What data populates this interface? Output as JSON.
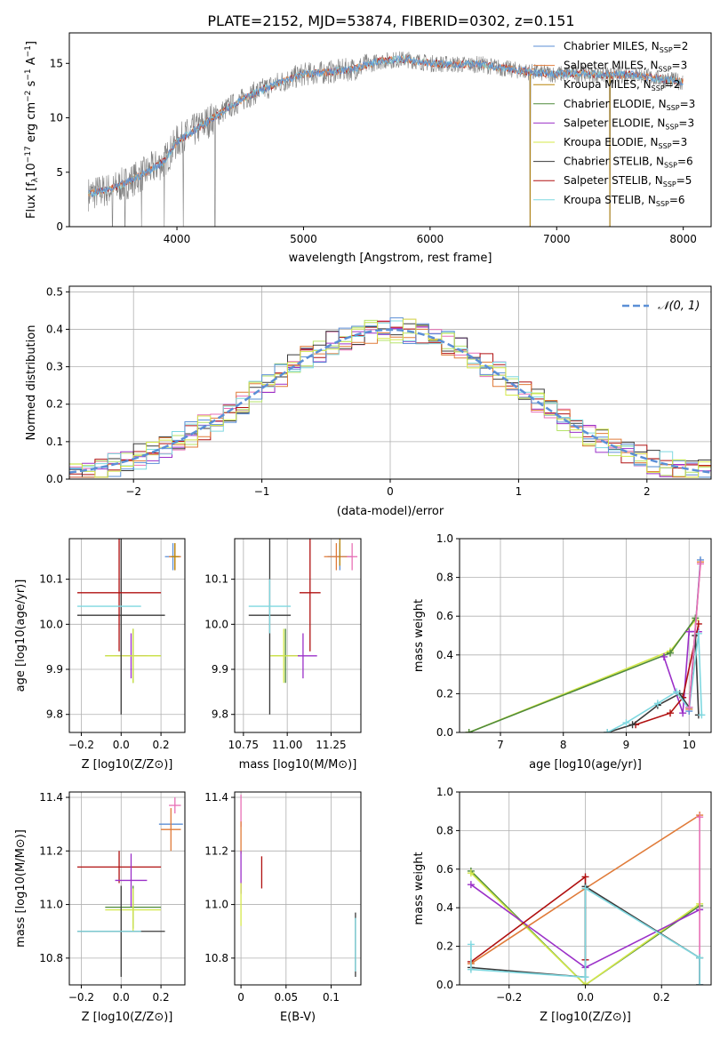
{
  "page_title": "PLATE=2152, MJD=53874, FIBERID=0302, z=0.151",
  "colors": {
    "chabrier_miles": "#5b8fd6",
    "salpeter_miles": "#e07b39",
    "kroupa_miles": "#b8860b",
    "chabrier_elodie": "#4f8a3a",
    "salpeter_elodie": "#9b30c8",
    "kroupa_elodie": "#d4e84a",
    "chabrier_stelib": "#3a3a3a",
    "salpeter_stelib": "#b01010",
    "kroupa_stelib": "#7fd8e0",
    "data": "#808080",
    "normal": "#5b8fd6",
    "pink": "#e86fb5",
    "lightgreen": "#b6e36a"
  },
  "chart_data": [
    {
      "id": "spectrum",
      "type": "line",
      "xlabel": "wavelength [Angstrom, rest frame]",
      "ylabel": "Flux [f_λ 10^-17 erg cm^-2 s^-1 A^-1]",
      "xlim": [
        3150,
        8220
      ],
      "ylim": [
        0,
        17.8
      ],
      "xticks": [
        4000,
        5000,
        6000,
        7000,
        8000
      ],
      "yticks": [
        0,
        5,
        10,
        15
      ],
      "legend_position": "top-right",
      "legend": [
        {
          "label": "Chabrier MILES, N_SSP=2",
          "color_key": "chabrier_miles"
        },
        {
          "label": "Salpeter MILES, N_SSP=3",
          "color_key": "salpeter_miles"
        },
        {
          "label": "Kroupa MILES, N_SSP=2",
          "color_key": "kroupa_miles"
        },
        {
          "label": "Chabrier ELODIE, N_SSP=3",
          "color_key": "chabrier_elodie"
        },
        {
          "label": "Salpeter ELODIE, N_SSP=3",
          "color_key": "salpeter_elodie"
        },
        {
          "label": "Kroupa ELODIE, N_SSP=3",
          "color_key": "kroupa_elodie"
        },
        {
          "label": "Chabrier STELIB, N_SSP=6",
          "color_key": "chabrier_stelib"
        },
        {
          "label": "Salpeter STELIB, N_SSP=5",
          "color_key": "salpeter_stelib"
        },
        {
          "label": "Kroupa STELIB, N_SSP=6",
          "color_key": "kroupa_stelib"
        }
      ],
      "continuum": [
        [
          3300,
          3.0
        ],
        [
          3500,
          3.5
        ],
        [
          3700,
          4.6
        ],
        [
          3900,
          6.0
        ],
        [
          4000,
          7.8
        ],
        [
          4200,
          9.3
        ],
        [
          4400,
          10.9
        ],
        [
          4600,
          12.2
        ],
        [
          4800,
          13.2
        ],
        [
          5000,
          14.0
        ],
        [
          5200,
          14.2
        ],
        [
          5400,
          14.5
        ],
        [
          5600,
          15.2
        ],
        [
          5800,
          15.4
        ],
        [
          6000,
          15.0
        ],
        [
          6200,
          14.9
        ],
        [
          6400,
          14.9
        ],
        [
          6600,
          14.5
        ],
        [
          6800,
          14.2
        ],
        [
          7000,
          14.0
        ],
        [
          7200,
          14.1
        ],
        [
          7400,
          13.9
        ],
        [
          7600,
          14.0
        ],
        [
          7800,
          13.6
        ],
        [
          8000,
          13.3
        ]
      ],
      "drops": [
        [
          3490,
          0
        ],
        [
          3590,
          0
        ],
        [
          3720,
          0
        ],
        [
          3900,
          0
        ],
        [
          4050,
          0
        ],
        [
          4300,
          0
        ],
        [
          6790,
          0
        ],
        [
          7420,
          0
        ]
      ]
    },
    {
      "id": "residuals",
      "type": "histogram",
      "xlabel": "(data-model)/error",
      "ylabel": "Normed distribution",
      "xlim": [
        -2.5,
        2.5
      ],
      "ylim": [
        0,
        0.515
      ],
      "xticks": [
        -2,
        -1,
        0,
        1,
        2
      ],
      "yticks": [
        0.0,
        0.1,
        0.2,
        0.3,
        0.4,
        0.5
      ],
      "legend_position": "top-right",
      "legend_label": "𝒩(0, 1)",
      "bin_start": -2.5,
      "bin_width": 0.1
    },
    {
      "id": "age_vs_Z",
      "type": "errorbar",
      "xlabel": "Z [log10(Z/Z⊙)]",
      "ylabel": "age [log10(age/yr)]",
      "xlim": [
        -0.26,
        0.32
      ],
      "ylim": [
        9.76,
        10.19
      ],
      "xticks": [
        -0.2,
        0.0,
        0.2
      ],
      "yticks": [
        9.8,
        9.9,
        10.0,
        10.1
      ],
      "points": [
        {
          "color_key": "chabrier_miles",
          "x": 0.26,
          "y": 10.15,
          "xe": 0.04,
          "ye": 0.03
        },
        {
          "color_key": "salpeter_miles",
          "x": 0.27,
          "y": 10.15,
          "xe": 0.03,
          "ye": 0.03
        },
        {
          "color_key": "kroupa_miles",
          "x": 0.27,
          "y": 10.15,
          "xe": 0.02,
          "ye": 0.03
        },
        {
          "color_key": "chabrier_elodie",
          "x": 0.06,
          "y": 9.93,
          "xe": 0.14,
          "ye": 0.06
        },
        {
          "color_key": "salpeter_elodie",
          "x": 0.05,
          "y": 9.93,
          "xe": 0.08,
          "ye": 0.05
        },
        {
          "color_key": "kroupa_elodie",
          "x": 0.06,
          "y": 9.93,
          "xe": 0.14,
          "ye": 0.06
        },
        {
          "color_key": "chabrier_stelib",
          "x": 0.0,
          "y": 10.02,
          "xe": 0.22,
          "ye": 0.22
        },
        {
          "color_key": "salpeter_stelib",
          "x": -0.01,
          "y": 10.07,
          "xe": 0.21,
          "ye": 0.13
        },
        {
          "color_key": "kroupa_stelib",
          "x": -0.06,
          "y": 10.04,
          "xe": 0.16,
          "ye": 0.0
        }
      ]
    },
    {
      "id": "age_vs_mass",
      "type": "errorbar",
      "xlabel": "mass [log10(M/M⊙)]",
      "ylabel": "",
      "xlim": [
        10.7,
        11.42
      ],
      "ylim": [
        9.76,
        10.19
      ],
      "xticks": [
        10.75,
        11.0,
        11.25
      ],
      "yticks": [
        9.8,
        9.9,
        10.0,
        10.1
      ],
      "points": [
        {
          "color_key": "chabrier_miles",
          "x": 11.3,
          "y": 10.15,
          "xe": 0.07,
          "ye": 0.03
        },
        {
          "color_key": "salpeter_miles",
          "x": 11.28,
          "y": 10.15,
          "xe": 0.07,
          "ye": 0.03
        },
        {
          "color_key": "kroupa_miles",
          "x": 11.3,
          "y": 10.16,
          "xe": 0.0,
          "ye": 0.03
        },
        {
          "color_key": "pink",
          "x": 11.37,
          "y": 10.15,
          "xe": 0.03,
          "ye": 0.03
        },
        {
          "color_key": "chabrier_elodie",
          "x": 10.99,
          "y": 9.93,
          "xe": 0.08,
          "ye": 0.06
        },
        {
          "color_key": "salpeter_elodie",
          "x": 11.09,
          "y": 9.93,
          "xe": 0.08,
          "ye": 0.05
        },
        {
          "color_key": "kroupa_elodie",
          "x": 10.98,
          "y": 9.93,
          "xe": 0.08,
          "ye": 0.06
        },
        {
          "color_key": "chabrier_stelib",
          "x": 10.9,
          "y": 10.02,
          "xe": 0.12,
          "ye": 0.22
        },
        {
          "color_key": "salpeter_stelib",
          "x": 11.13,
          "y": 10.07,
          "xe": 0.06,
          "ye": 0.13
        },
        {
          "color_key": "kroupa_stelib",
          "x": 10.9,
          "y": 10.04,
          "xe": 0.12,
          "ye": 0.06
        }
      ]
    },
    {
      "id": "weight_vs_age",
      "type": "line",
      "xlabel": "age [log10(age/yr)]",
      "ylabel": "mass weight",
      "xlim": [
        6.35,
        10.35
      ],
      "ylim": [
        0.0,
        1.0
      ],
      "xticks": [
        7,
        8,
        9,
        10
      ],
      "yticks": [
        0.0,
        0.2,
        0.4,
        0.6,
        0.8,
        1.0
      ],
      "series": [
        {
          "color_key": "kroupa_elodie",
          "x": [
            6.5,
            9.7,
            10.1
          ],
          "y": [
            0.0,
            0.42,
            0.58
          ]
        },
        {
          "color_key": "chabrier_elodie",
          "x": [
            6.5,
            9.7,
            10.1
          ],
          "y": [
            0.0,
            0.41,
            0.59
          ]
        },
        {
          "color_key": "salpeter_elodie",
          "x": [
            9.6,
            9.9,
            10.0,
            10.15
          ],
          "y": [
            0.39,
            0.1,
            0.52,
            0.52
          ]
        },
        {
          "color_key": "salpeter_stelib",
          "x": [
            9.15,
            9.7,
            9.9,
            10.15
          ],
          "y": [
            0.04,
            0.1,
            0.18,
            0.56
          ]
        },
        {
          "color_key": "chabrier_stelib",
          "x": [
            8.7,
            9.1,
            9.5,
            9.85,
            10.0,
            10.1,
            10.15
          ],
          "y": [
            0.0,
            0.04,
            0.14,
            0.2,
            0.13,
            0.5,
            0.09
          ]
        },
        {
          "color_key": "kroupa_stelib",
          "x": [
            8.7,
            9.0,
            9.5,
            9.8,
            10.0,
            10.15,
            10.2
          ],
          "y": [
            0.0,
            0.05,
            0.15,
            0.21,
            0.12,
            0.51,
            0.09
          ]
        },
        {
          "color_key": "salpeter_miles",
          "x": [
            10.0,
            10.18
          ],
          "y": [
            0.12,
            0.88
          ]
        },
        {
          "color_key": "chabrier_miles",
          "x": [
            10.0,
            10.18
          ],
          "y": [
            0.11,
            0.89
          ]
        },
        {
          "color_key": "pink",
          "x": [
            10.0,
            10.18
          ],
          "y": [
            0.13,
            0.87
          ]
        }
      ]
    },
    {
      "id": "mass_vs_Z",
      "type": "errorbar",
      "xlabel": "Z [log10(Z/Z⊙)]",
      "ylabel": "mass [log10(M/M⊙)]",
      "xlim": [
        -0.26,
        0.32
      ],
      "ylim": [
        10.7,
        11.42
      ],
      "xticks": [
        -0.2,
        0.0,
        0.2
      ],
      "yticks": [
        10.8,
        11.0,
        11.2,
        11.4
      ],
      "points": [
        {
          "color_key": "pink",
          "x": 0.27,
          "y": 11.37,
          "xe": 0.03,
          "ye": 0.03
        },
        {
          "color_key": "chabrier_miles",
          "x": 0.25,
          "y": 11.3,
          "xe": 0.06,
          "ye": 0.0
        },
        {
          "color_key": "salpeter_miles",
          "x": 0.25,
          "y": 11.28,
          "xe": 0.05,
          "ye": 0.08
        },
        {
          "color_key": "salpeter_stelib",
          "x": -0.01,
          "y": 11.14,
          "xe": 0.21,
          "ye": 0.06
        },
        {
          "color_key": "salpeter_elodie",
          "x": 0.05,
          "y": 11.09,
          "xe": 0.08,
          "ye": 0.1
        },
        {
          "color_key": "chabrier_elodie",
          "x": 0.06,
          "y": 10.99,
          "xe": 0.14,
          "ye": 0.08
        },
        {
          "color_key": "kroupa_elodie",
          "x": 0.06,
          "y": 10.98,
          "xe": 0.14,
          "ye": 0.08
        },
        {
          "color_key": "chabrier_stelib",
          "x": 0.0,
          "y": 10.9,
          "xe": 0.22,
          "ye": 0.17
        },
        {
          "color_key": "kroupa_stelib",
          "x": -0.06,
          "y": 10.9,
          "xe": 0.16,
          "ye": 0.0
        }
      ]
    },
    {
      "id": "mass_vs_ebv",
      "type": "errorbar",
      "xlabel": "E(B-V)",
      "ylabel": "",
      "xlim": [
        -0.007,
        0.133
      ],
      "ylim": [
        10.7,
        11.42
      ],
      "xticks": [
        0.0,
        0.05,
        0.1
      ],
      "yticks": [
        10.8,
        11.0,
        11.2,
        11.4
      ],
      "points": [
        {
          "color_key": "pink",
          "x": 0.0,
          "y": 11.35,
          "xe": 0.0,
          "ye": 0.06
        },
        {
          "color_key": "salpeter_miles",
          "x": 0.0,
          "y": 11.25,
          "xe": 0.0,
          "ye": 0.06
        },
        {
          "color_key": "salpeter_elodie",
          "x": 0.0,
          "y": 11.12,
          "xe": 0.0,
          "ye": 0.08
        },
        {
          "color_key": "kroupa_elodie",
          "x": 0.0,
          "y": 11.0,
          "xe": 0.0,
          "ye": 0.08
        },
        {
          "color_key": "salpeter_stelib",
          "x": 0.023,
          "y": 11.12,
          "xe": 0.0,
          "ye": 0.06
        },
        {
          "color_key": "chabrier_stelib",
          "x": 0.127,
          "y": 10.85,
          "xe": 0.0,
          "ye": 0.12
        },
        {
          "color_key": "kroupa_stelib",
          "x": 0.127,
          "y": 10.85,
          "xe": 0.0,
          "ye": 0.1
        }
      ]
    },
    {
      "id": "weight_vs_Z",
      "type": "line",
      "xlabel": "Z [log10(Z/Z⊙)]",
      "ylabel": "mass weight",
      "xlim": [
        -0.33,
        0.33
      ],
      "ylim": [
        0.0,
        1.0
      ],
      "xticks": [
        -0.2,
        0.0,
        0.2
      ],
      "yticks": [
        0.0,
        0.2,
        0.4,
        0.6,
        0.8,
        1.0
      ],
      "series": [
        {
          "color_key": "chabrier_elodie",
          "x": [
            -0.3,
            0.0,
            0.3
          ],
          "y": [
            0.59,
            0.0,
            0.41
          ]
        },
        {
          "color_key": "kroupa_elodie",
          "x": [
            -0.3,
            0.0,
            0.3
          ],
          "y": [
            0.58,
            0.0,
            0.42
          ]
        },
        {
          "color_key": "salpeter_elodie",
          "x": [
            -0.3,
            0.0,
            0.3
          ],
          "y": [
            0.52,
            0.09,
            0.39
          ]
        },
        {
          "color_key": "salpeter_stelib",
          "x": [
            -0.3,
            0.0,
            0.0
          ],
          "y": [
            0.12,
            0.56,
            0.13
          ]
        },
        {
          "color_key": "salpeter_miles",
          "x": [
            -0.3,
            0.0,
            0.3
          ],
          "y": [
            0.11,
            0.5,
            0.88
          ]
        },
        {
          "color_key": "pink",
          "x": [
            0.3,
            0.3
          ],
          "y": [
            0.87,
            0.0
          ]
        },
        {
          "color_key": "chabrier_stelib",
          "x": [
            -0.3,
            0.0,
            0.0,
            0.3,
            0.3
          ],
          "y": [
            0.09,
            0.04,
            0.51,
            0.14,
            0.0
          ]
        },
        {
          "color_key": "kroupa_stelib",
          "x": [
            -0.3,
            -0.3,
            0.0,
            0.0,
            0.3,
            0.3
          ],
          "y": [
            0.21,
            0.08,
            0.04,
            0.5,
            0.14,
            0.0
          ]
        }
      ]
    }
  ]
}
